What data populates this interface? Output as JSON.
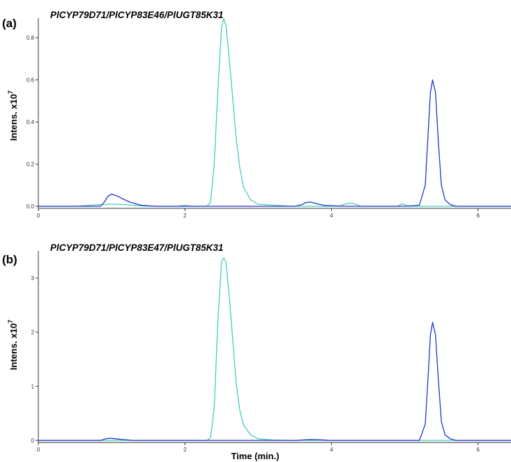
{
  "chart_data": [
    {
      "type": "line",
      "panel_label": "(a)",
      "title": "PlCYP79D71/PlCYP83E46/PlUGT85K31",
      "ylabel_main": "Intens. x10",
      "ylabel_exp": "7",
      "xlim": [
        0,
        6.45
      ],
      "ylim": [
        0,
        0.88
      ],
      "xticks": [
        0,
        2,
        4,
        6
      ],
      "yticks": [
        0.0,
        0.2,
        0.4,
        0.6,
        0.8
      ],
      "ytick_labels": [
        "0.0",
        "0.2",
        "0.4",
        "0.6",
        "0.8"
      ],
      "series": [
        {
          "color": "#44ccc0",
          "x": [
            0,
            0.5,
            0.95,
            1.05,
            1.5,
            1.9,
            2.0,
            2.1,
            2.2,
            2.3,
            2.35,
            2.4,
            2.45,
            2.5,
            2.53,
            2.56,
            2.6,
            2.65,
            2.7,
            2.75,
            2.8,
            2.9,
            3.0,
            3.2,
            3.5,
            4.1,
            4.2,
            4.27,
            4.35,
            4.4,
            4.9,
            4.97,
            5.05,
            5.5,
            6.45
          ],
          "y": [
            0.0,
            0.0,
            0.01,
            0.01,
            0.0,
            0.0,
            0.005,
            0.0,
            0.0,
            0.0,
            0.02,
            0.2,
            0.55,
            0.85,
            0.89,
            0.86,
            0.72,
            0.52,
            0.32,
            0.18,
            0.09,
            0.03,
            0.01,
            0.005,
            0.0,
            0.0,
            0.012,
            0.015,
            0.008,
            0.0,
            0.0,
            0.012,
            0.0,
            0.0,
            0.0
          ]
        },
        {
          "color": "#2434c8",
          "x": [
            0,
            0.85,
            0.9,
            0.95,
            1.0,
            1.05,
            1.1,
            1.15,
            1.25,
            1.4,
            1.6,
            2.0,
            2.4,
            3.0,
            3.5,
            3.6,
            3.65,
            3.72,
            3.8,
            3.9,
            4.2,
            5.0,
            5.2,
            5.28,
            5.32,
            5.35,
            5.38,
            5.42,
            5.46,
            5.5,
            5.55,
            5.62,
            5.7,
            6.0,
            6.45
          ],
          "y": [
            0.0,
            0.0,
            0.02,
            0.048,
            0.058,
            0.052,
            0.045,
            0.035,
            0.02,
            0.005,
            0.0,
            0.0,
            0.0,
            0.0,
            0.0,
            0.008,
            0.018,
            0.02,
            0.012,
            0.004,
            0.0,
            0.0,
            0.005,
            0.1,
            0.35,
            0.54,
            0.6,
            0.54,
            0.3,
            0.1,
            0.03,
            0.008,
            0.0,
            0.0,
            0.0
          ]
        }
      ]
    },
    {
      "type": "line",
      "panel_label": "(b)",
      "title": "PlCYP79D71/PlCYP83E47/PlUGT85K31",
      "ylabel_main": "Intens. x10",
      "ylabel_exp": "7",
      "xlabel": "Time (min.)",
      "xlim": [
        0,
        6.45
      ],
      "ylim": [
        0,
        3.45
      ],
      "xticks": [
        0,
        2,
        4,
        6
      ],
      "yticks": [
        0,
        1,
        2,
        3
      ],
      "ytick_labels": [
        "0",
        "1",
        "2",
        "3"
      ],
      "series": [
        {
          "color": "#44ccc0",
          "x": [
            0,
            2.3,
            2.35,
            2.4,
            2.45,
            2.5,
            2.53,
            2.56,
            2.6,
            2.65,
            2.7,
            2.75,
            2.8,
            2.9,
            3.0,
            3.2,
            3.5,
            6.45
          ],
          "y": [
            0.0,
            0.0,
            0.05,
            0.6,
            2.2,
            3.3,
            3.37,
            3.3,
            2.75,
            1.9,
            1.05,
            0.55,
            0.28,
            0.1,
            0.03,
            0.008,
            0.0,
            0.0
          ]
        },
        {
          "color": "#2434c8",
          "x": [
            0,
            0.85,
            0.92,
            0.98,
            1.05,
            1.15,
            1.3,
            3.5,
            3.7,
            3.85,
            4.0,
            5.2,
            5.28,
            5.32,
            5.35,
            5.38,
            5.42,
            5.46,
            5.5,
            5.55,
            5.62,
            5.7,
            6.45
          ],
          "y": [
            0.0,
            0.0,
            0.03,
            0.04,
            0.03,
            0.015,
            0.0,
            0.0,
            0.015,
            0.01,
            0.0,
            0.0,
            0.3,
            1.2,
            1.95,
            2.18,
            1.95,
            1.1,
            0.35,
            0.1,
            0.03,
            0.0,
            0.0
          ]
        }
      ]
    }
  ]
}
